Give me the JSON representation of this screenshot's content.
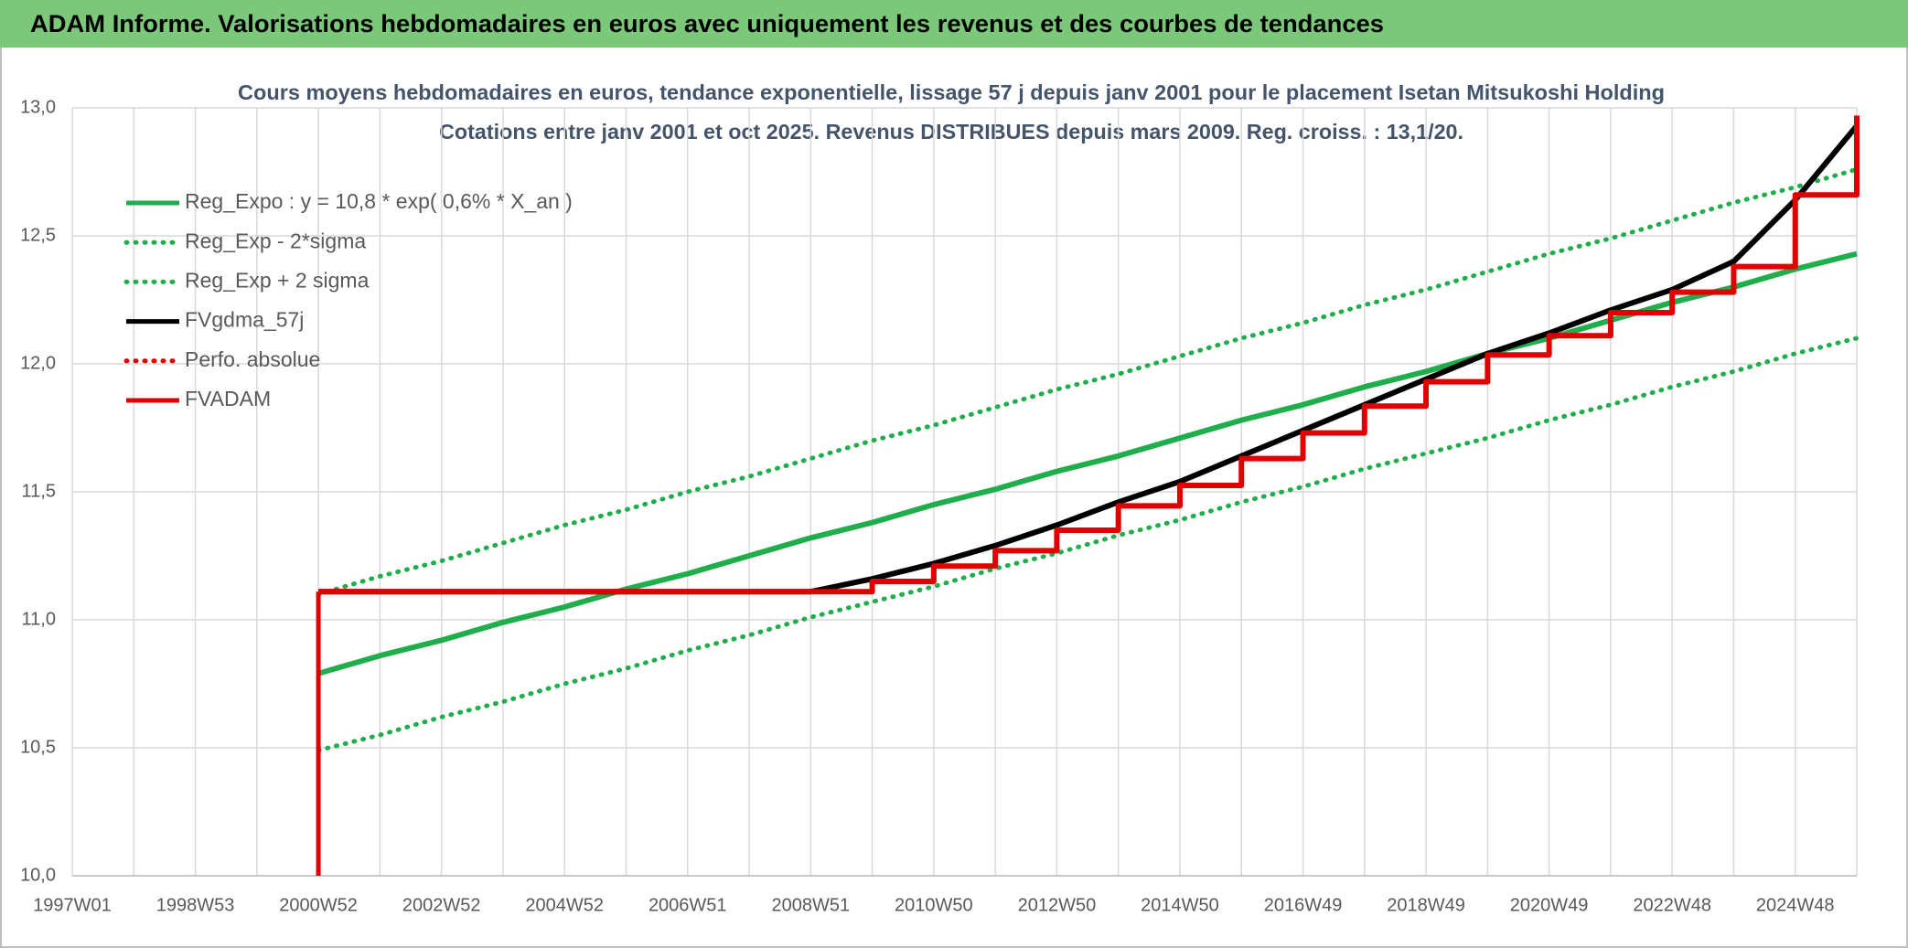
{
  "header": {
    "title": "ADAM Informe. Valorisations hebdomadaires en euros avec uniquement les revenus et des courbes de tendances"
  },
  "chart_data": {
    "type": "line",
    "title": "Cours moyens hebdomadaires en euros, tendance exponentielle, lissage 57 j depuis janv 2001 pour le placement Isetan Mitsukoshi Holding",
    "subtitle": "Cotations entre janv 2001 et oct 2025. Revenus DISTRIBUES depuis mars 2009. Reg. croiss. : 13,1/20.",
    "categories": [
      "1997W01",
      null,
      "1998W53",
      null,
      "2000W52",
      null,
      "2002W52",
      null,
      "2004W52",
      null,
      "2006W51",
      null,
      "2008W51",
      null,
      "2010W50",
      null,
      "2012W50",
      null,
      "2014W50",
      null,
      "2016W49",
      null,
      "2018W49",
      null,
      "2020W49",
      null,
      "2022W48",
      null,
      "2024W48",
      null
    ],
    "ylim": [
      10,
      13
    ],
    "yticks": [
      {
        "value": 10,
        "label": "10,0"
      },
      {
        "value": 10.5,
        "label": "10,5"
      },
      {
        "value": 11,
        "label": "11,0"
      },
      {
        "value": 11.5,
        "label": "11,5"
      },
      {
        "value": 12,
        "label": "12,0"
      },
      {
        "value": 12.5,
        "label": "12,5"
      },
      {
        "value": 13,
        "label": "13,0"
      }
    ],
    "grid": true,
    "legend": "upper left",
    "series": [
      {
        "name": "Reg_Expo : y = 10,8 * exp( 0,6% *  X_an )",
        "color": "#1fae4b",
        "style": "solid",
        "values": [
          null,
          null,
          null,
          null,
          10.79,
          10.86,
          10.92,
          10.99,
          11.05,
          11.12,
          11.18,
          11.25,
          11.32,
          11.38,
          11.45,
          11.51,
          11.58,
          11.64,
          11.71,
          11.78,
          11.84,
          11.91,
          11.97,
          12.04,
          12.1,
          12.17,
          12.24,
          12.3,
          12.37,
          12.43
        ]
      },
      {
        "name": "Reg_Exp - 2*sigma",
        "color": "#1fae4b",
        "style": "dotted",
        "values": [
          null,
          null,
          null,
          null,
          10.49,
          10.55,
          10.62,
          10.68,
          10.75,
          10.81,
          10.88,
          10.94,
          11.01,
          11.07,
          11.13,
          11.2,
          11.26,
          11.33,
          11.39,
          11.46,
          11.52,
          11.59,
          11.65,
          11.71,
          11.78,
          11.84,
          11.91,
          11.97,
          12.04,
          12.1
        ]
      },
      {
        "name": "Reg_Exp + 2 sigma",
        "color": "#1fae4b",
        "style": "dotted",
        "values": [
          null,
          null,
          null,
          null,
          11.1,
          11.17,
          11.23,
          11.3,
          11.37,
          11.43,
          11.5,
          11.56,
          11.63,
          11.7,
          11.76,
          11.83,
          11.9,
          11.96,
          12.03,
          12.1,
          12.16,
          12.23,
          12.29,
          12.36,
          12.43,
          12.49,
          12.56,
          12.63,
          12.69,
          12.76
        ]
      },
      {
        "name": "FVgdma_57j",
        "color": "#000000",
        "style": "solid",
        "values": [
          null,
          null,
          null,
          null,
          11.11,
          11.11,
          11.11,
          11.11,
          11.11,
          11.11,
          11.11,
          11.11,
          11.11,
          11.16,
          11.22,
          11.29,
          11.37,
          11.46,
          11.54,
          11.64,
          11.74,
          11.84,
          11.94,
          12.04,
          12.12,
          12.21,
          12.29,
          12.4,
          12.64,
          12.93
        ]
      },
      {
        "name": "Perfo. absolue",
        "color": "#e00000",
        "style": "dotted",
        "values": [
          null,
          null,
          null,
          null,
          null,
          null,
          null,
          null,
          null,
          null,
          null,
          null,
          null,
          null,
          null,
          null,
          null,
          null,
          null,
          null,
          null,
          null,
          null,
          null,
          null,
          null,
          null,
          null,
          null,
          null
        ]
      },
      {
        "name": "FVADAM",
        "color": "#e00000",
        "style": "step",
        "values": [
          null,
          null,
          null,
          null,
          11.11,
          11.11,
          11.11,
          11.11,
          11.11,
          11.11,
          11.11,
          11.11,
          11.11,
          11.15,
          11.21,
          11.27,
          11.35,
          11.445,
          11.525,
          11.63,
          11.73,
          11.835,
          11.93,
          12.035,
          12.11,
          12.2,
          12.28,
          12.38,
          12.66,
          12.97
        ]
      }
    ]
  }
}
